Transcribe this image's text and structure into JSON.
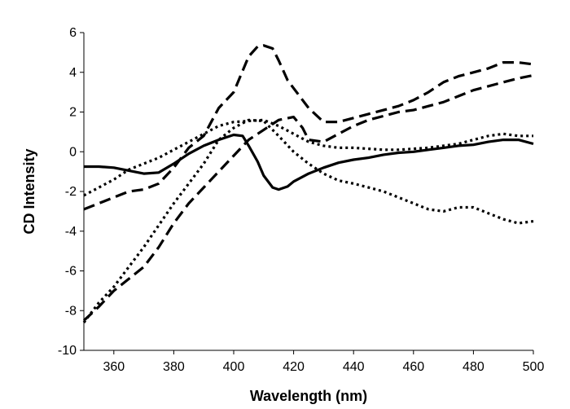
{
  "chart_data": {
    "type": "line",
    "title": "",
    "xlabel": "Wavelength (nm)",
    "ylabel": "CD Intensity",
    "xlim": [
      350,
      500
    ],
    "ylim": [
      -10,
      6
    ],
    "xticks": [
      360,
      380,
      400,
      420,
      440,
      460,
      480,
      500
    ],
    "yticks": [
      -10,
      -8,
      -6,
      -4,
      -2,
      0,
      2,
      4,
      6
    ],
    "grid": false,
    "legend": "none",
    "series": [
      {
        "name": "solid",
        "style": "solid",
        "x": [
          350,
          355,
          360,
          365,
          370,
          375,
          380,
          385,
          390,
          395,
          400,
          403,
          405,
          408,
          410,
          413,
          415,
          418,
          420,
          425,
          430,
          435,
          440,
          445,
          450,
          455,
          460,
          465,
          470,
          475,
          480,
          485,
          490,
          495,
          500
        ],
        "y": [
          -0.75,
          -0.75,
          -0.8,
          -0.95,
          -1.1,
          -1.05,
          -0.6,
          -0.1,
          0.3,
          0.6,
          0.85,
          0.8,
          0.3,
          -0.5,
          -1.2,
          -1.8,
          -1.9,
          -1.75,
          -1.5,
          -1.1,
          -0.8,
          -0.55,
          -0.4,
          -0.3,
          -0.15,
          -0.05,
          0.0,
          0.1,
          0.2,
          0.3,
          0.35,
          0.5,
          0.6,
          0.6,
          0.4
        ]
      },
      {
        "name": "long-dashed upper",
        "style": "dashed",
        "x": [
          350,
          355,
          360,
          365,
          370,
          375,
          380,
          385,
          390,
          395,
          400,
          405,
          408,
          410,
          413,
          415,
          418,
          420,
          425,
          430,
          435,
          440,
          445,
          450,
          455,
          460,
          465,
          470,
          475,
          480,
          485,
          490,
          495,
          500
        ],
        "y": [
          -2.9,
          -2.6,
          -2.3,
          -2.0,
          -1.9,
          -1.6,
          -0.8,
          0.2,
          0.8,
          2.2,
          3.0,
          4.8,
          5.3,
          5.35,
          5.2,
          4.6,
          3.6,
          3.2,
          2.2,
          1.5,
          1.5,
          1.7,
          1.9,
          2.1,
          2.3,
          2.6,
          3.0,
          3.5,
          3.8,
          4.0,
          4.2,
          4.5,
          4.5,
          4.4
        ]
      },
      {
        "name": "long-dashed lower",
        "style": "dashed",
        "x": [
          350,
          355,
          360,
          365,
          370,
          375,
          380,
          385,
          390,
          395,
          400,
          405,
          410,
          415,
          420,
          423,
          425,
          430,
          435,
          440,
          445,
          450,
          455,
          460,
          465,
          470,
          475,
          480,
          485,
          490,
          495,
          500
        ],
        "y": [
          -8.5,
          -7.8,
          -7.0,
          -6.4,
          -5.8,
          -4.8,
          -3.6,
          -2.6,
          -1.8,
          -1.0,
          -0.2,
          0.6,
          1.1,
          1.6,
          1.75,
          1.2,
          0.6,
          0.5,
          0.9,
          1.3,
          1.6,
          1.8,
          2.0,
          2.1,
          2.3,
          2.5,
          2.8,
          3.1,
          3.3,
          3.5,
          3.7,
          3.85
        ]
      },
      {
        "name": "dotted upper",
        "style": "dotted",
        "x": [
          350,
          355,
          360,
          365,
          370,
          375,
          380,
          385,
          390,
          395,
          400,
          405,
          410,
          415,
          420,
          425,
          430,
          435,
          440,
          445,
          450,
          455,
          460,
          465,
          470,
          475,
          480,
          485,
          490,
          495,
          500
        ],
        "y": [
          -2.2,
          -1.8,
          -1.4,
          -0.9,
          -0.6,
          -0.3,
          0.1,
          0.5,
          0.9,
          1.3,
          1.5,
          1.55,
          1.6,
          1.3,
          0.9,
          0.5,
          0.3,
          0.2,
          0.2,
          0.15,
          0.1,
          0.1,
          0.15,
          0.2,
          0.3,
          0.4,
          0.6,
          0.8,
          0.9,
          0.8,
          0.8
        ]
      },
      {
        "name": "dotted lower",
        "style": "dotted",
        "x": [
          350,
          355,
          360,
          365,
          370,
          375,
          380,
          385,
          390,
          395,
          400,
          405,
          410,
          415,
          420,
          425,
          430,
          435,
          440,
          445,
          450,
          455,
          460,
          465,
          470,
          475,
          480,
          485,
          490,
          495,
          500
        ],
        "y": [
          -8.6,
          -7.6,
          -6.8,
          -5.8,
          -4.8,
          -3.7,
          -2.6,
          -1.6,
          -0.6,
          0.6,
          1.2,
          1.6,
          1.55,
          0.8,
          0.0,
          -0.6,
          -1.1,
          -1.45,
          -1.6,
          -1.8,
          -2.0,
          -2.3,
          -2.6,
          -2.9,
          -3.0,
          -2.8,
          -2.8,
          -3.1,
          -3.4,
          -3.6,
          -3.5
        ]
      }
    ]
  }
}
